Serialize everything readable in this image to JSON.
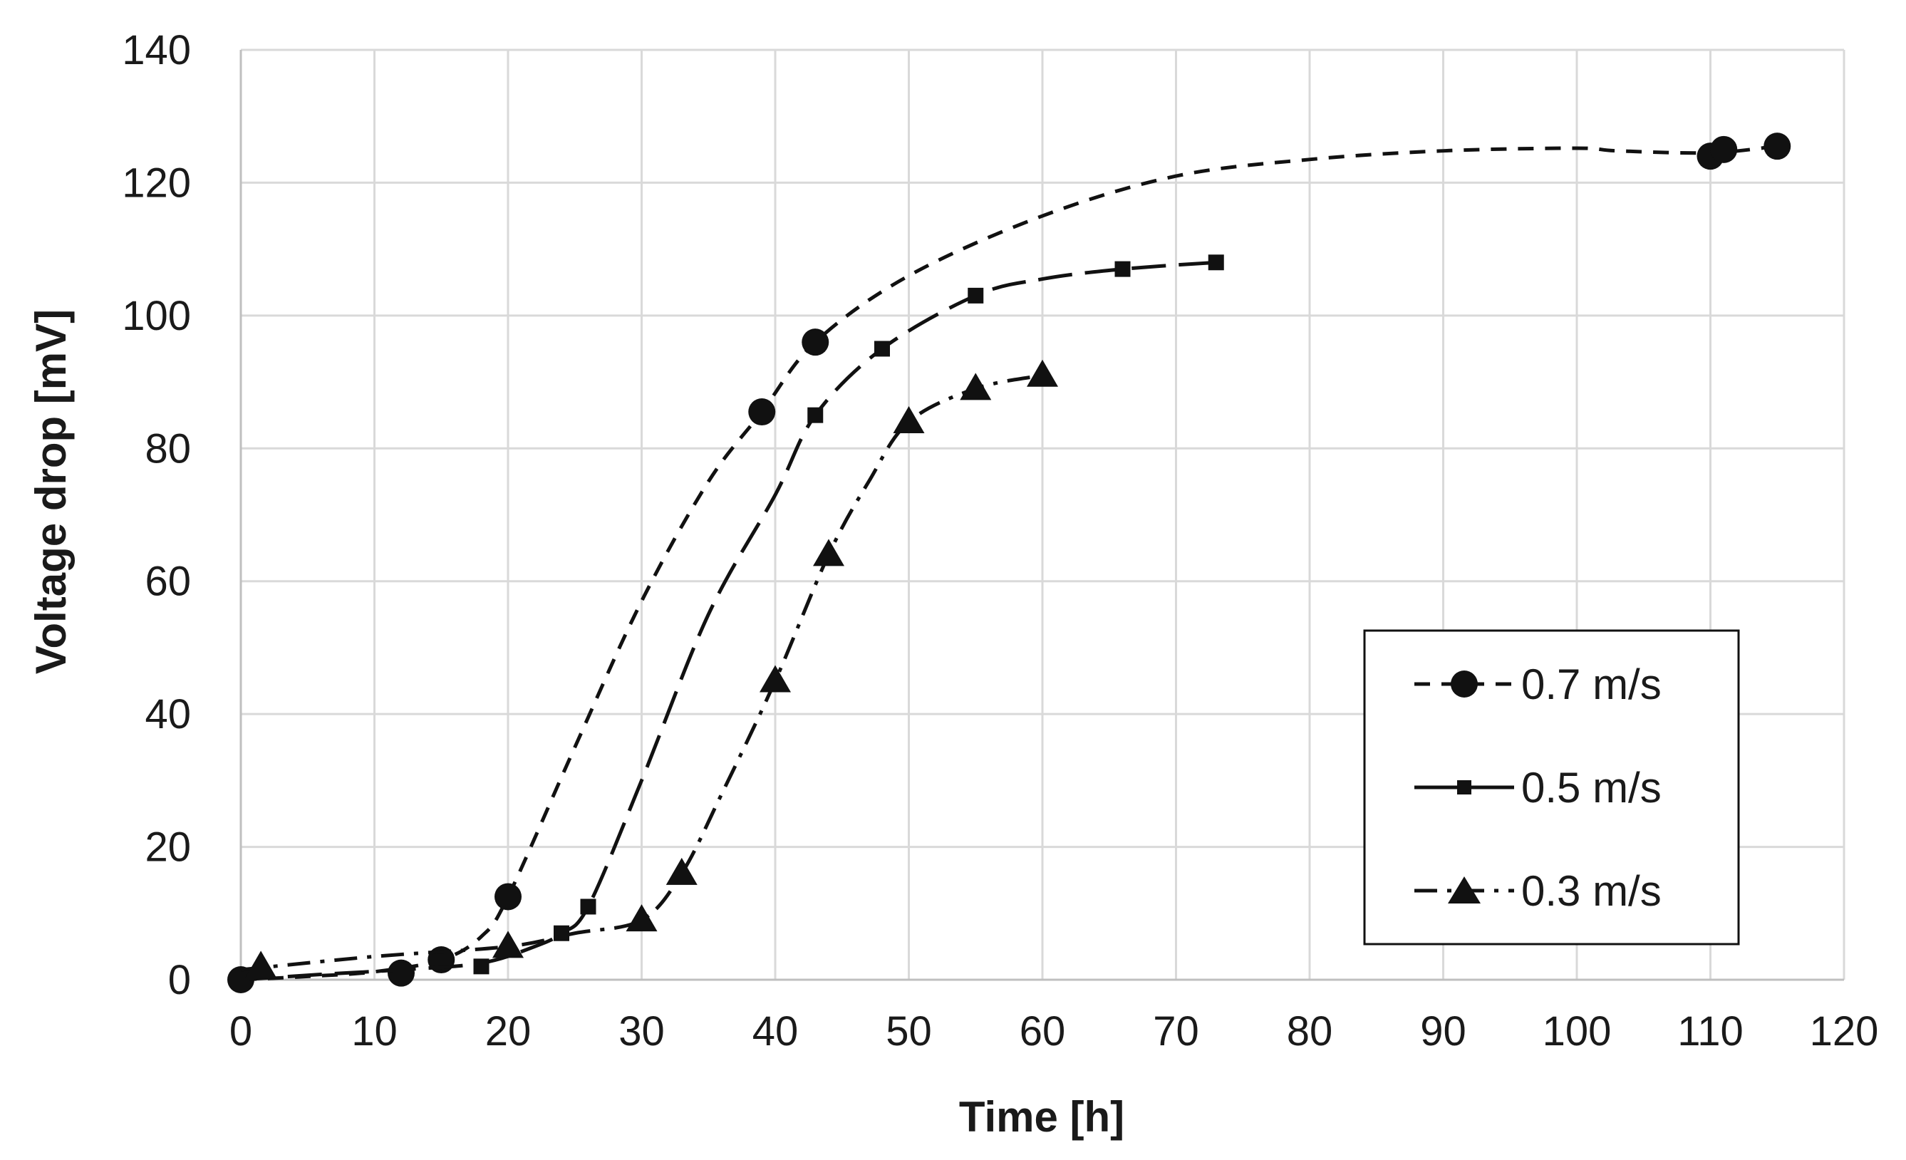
{
  "chart_data": {
    "type": "line",
    "title": "",
    "xlabel": "Time [h]",
    "ylabel": "Voltage drop [mV]",
    "xlim": [
      0,
      120
    ],
    "ylim": [
      0,
      140
    ],
    "xticks": [
      0,
      10,
      20,
      30,
      40,
      50,
      60,
      70,
      80,
      90,
      100,
      110,
      120
    ],
    "yticks": [
      0,
      20,
      40,
      60,
      80,
      100,
      120,
      140
    ],
    "grid": true,
    "legend_position": "right",
    "series": [
      {
        "name": "0.7 m/s",
        "marker": "circle",
        "line_style": "dashed",
        "points": [
          [
            0,
            0
          ],
          [
            12,
            1
          ],
          [
            15,
            3
          ],
          [
            20,
            12.5
          ],
          [
            39,
            85.5
          ],
          [
            43,
            96
          ],
          [
            110,
            124
          ],
          [
            111,
            125
          ],
          [
            115,
            125.5
          ]
        ],
        "curve": [
          [
            0,
            0
          ],
          [
            5,
            0.5
          ],
          [
            10,
            1.2
          ],
          [
            15,
            3
          ],
          [
            18,
            6.5
          ],
          [
            20,
            12.5
          ],
          [
            25,
            35
          ],
          [
            30,
            57
          ],
          [
            35,
            75
          ],
          [
            39,
            85.5
          ],
          [
            43,
            96
          ],
          [
            50,
            106
          ],
          [
            60,
            115
          ],
          [
            70,
            121
          ],
          [
            80,
            123.5
          ],
          [
            90,
            124.8
          ],
          [
            100,
            125.2
          ],
          [
            103,
            124.8
          ],
          [
            110,
            124.5
          ],
          [
            115,
            125.5
          ]
        ]
      },
      {
        "name": "0.5 m/s",
        "marker": "square",
        "line_style": "long-dash",
        "points": [
          [
            0,
            0
          ],
          [
            12,
            1.5
          ],
          [
            18,
            2
          ],
          [
            24,
            7
          ],
          [
            26,
            11
          ],
          [
            43,
            85
          ],
          [
            48,
            95
          ],
          [
            55,
            103
          ],
          [
            66,
            107
          ],
          [
            73,
            108
          ]
        ],
        "curve": [
          [
            0,
            0
          ],
          [
            6,
            0.8
          ],
          [
            12,
            1.5
          ],
          [
            18,
            2.5
          ],
          [
            22,
            5
          ],
          [
            24,
            7
          ],
          [
            26,
            11
          ],
          [
            30,
            30
          ],
          [
            35,
            55
          ],
          [
            40,
            73
          ],
          [
            43,
            85
          ],
          [
            48,
            95
          ],
          [
            55,
            103
          ],
          [
            60,
            105.5
          ],
          [
            66,
            107
          ],
          [
            73,
            108
          ]
        ]
      },
      {
        "name": "0.3 m/s",
        "marker": "triangle",
        "line_style": "dash-dot",
        "points": [
          [
            1.5,
            2
          ],
          [
            20,
            5
          ],
          [
            30,
            9
          ],
          [
            33,
            16
          ],
          [
            40,
            45
          ],
          [
            44,
            64
          ],
          [
            50,
            84
          ],
          [
            55,
            89
          ],
          [
            60,
            91
          ]
        ],
        "curve": [
          [
            0,
            1.5
          ],
          [
            10,
            3.5
          ],
          [
            20,
            5
          ],
          [
            25,
            7
          ],
          [
            30,
            9
          ],
          [
            33,
            16
          ],
          [
            36,
            28
          ],
          [
            40,
            45
          ],
          [
            44,
            64
          ],
          [
            47,
            75
          ],
          [
            50,
            84
          ],
          [
            55,
            89
          ],
          [
            60,
            91
          ]
        ]
      }
    ]
  },
  "legend": {
    "items": [
      "0.7 m/s",
      "0.5 m/s",
      "0.3 m/s"
    ]
  },
  "colors": {
    "series": "#111111",
    "grid": "#d9d9d9",
    "axis": "#bfbfbf"
  }
}
